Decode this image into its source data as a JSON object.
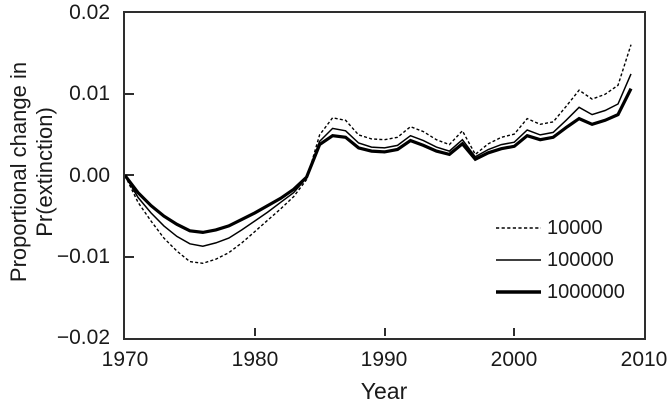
{
  "figure": {
    "background": "#ffffff",
    "line_color": "#000000",
    "frame_color": "#2e2e2e"
  },
  "chart_data": {
    "type": "line",
    "title": "",
    "xlabel": "Year",
    "ylabel": "Proportional change in Pr(extinction)",
    "ylabel_lines": [
      "Proportional change in",
      "Pr(extinction)"
    ],
    "xlim": [
      1970,
      2010
    ],
    "ylim": [
      -0.02,
      0.02
    ],
    "grid": false,
    "legend_position": "inside lower right",
    "x_tick_values": [
      1970,
      1980,
      1990,
      2000,
      2010
    ],
    "x_tick_labels": [
      "1970",
      "1980",
      "1990",
      "2000",
      "2010"
    ],
    "y_tick_values": [
      0.02,
      0.01,
      0.0,
      -0.01,
      -0.02
    ],
    "y_tick_labels": [
      "0.02",
      "0.01",
      "0.00",
      "−0.01",
      "−0.02"
    ],
    "x": [
      1970,
      1971,
      1972,
      1973,
      1974,
      1975,
      1976,
      1977,
      1978,
      1979,
      1980,
      1981,
      1982,
      1983,
      1984,
      1985,
      1986,
      1987,
      1988,
      1989,
      1990,
      1991,
      1992,
      1993,
      1994,
      1995,
      1996,
      1997,
      1998,
      1999,
      2000,
      2001,
      2002,
      2003,
      2004,
      2005,
      2006,
      2007,
      2008,
      2009
    ],
    "series": [
      {
        "name": "10000",
        "style": "dashed",
        "values": [
          0.0,
          -0.0033,
          -0.0056,
          -0.0077,
          -0.0093,
          -0.0106,
          -0.0108,
          -0.0103,
          -0.0095,
          -0.0083,
          -0.0069,
          -0.0055,
          -0.0041,
          -0.0026,
          -0.0005,
          0.005,
          0.0071,
          0.0068,
          0.005,
          0.0045,
          0.0044,
          0.0047,
          0.006,
          0.0054,
          0.0044,
          0.0038,
          0.0055,
          0.0026,
          0.0039,
          0.0047,
          0.0051,
          0.007,
          0.0063,
          0.0066,
          0.0085,
          0.0105,
          0.0094,
          0.01,
          0.0111,
          0.0161
        ]
      },
      {
        "name": "100000",
        "style": "thin-solid",
        "values": [
          0.0,
          -0.0027,
          -0.0046,
          -0.0062,
          -0.0075,
          -0.0084,
          -0.0087,
          -0.0083,
          -0.0077,
          -0.0067,
          -0.0056,
          -0.0045,
          -0.0033,
          -0.0021,
          -0.0003,
          0.0042,
          0.0058,
          0.0055,
          0.004,
          0.0035,
          0.0034,
          0.0037,
          0.0049,
          0.0043,
          0.0035,
          0.003,
          0.0044,
          0.0023,
          0.0032,
          0.0038,
          0.0041,
          0.0056,
          0.005,
          0.0053,
          0.0068,
          0.0084,
          0.0075,
          0.008,
          0.0088,
          0.0125
        ]
      },
      {
        "name": "1000000",
        "style": "thick-solid",
        "values": [
          0.0,
          -0.0021,
          -0.0037,
          -0.005,
          -0.006,
          -0.0068,
          -0.007,
          -0.0067,
          -0.0062,
          -0.0054,
          -0.0046,
          -0.0037,
          -0.0028,
          -0.0017,
          -0.0002,
          0.0038,
          0.0049,
          0.0047,
          0.0034,
          0.003,
          0.0029,
          0.0032,
          0.0043,
          0.0037,
          0.003,
          0.0026,
          0.0039,
          0.002,
          0.0028,
          0.0033,
          0.0036,
          0.0049,
          0.0044,
          0.0047,
          0.0059,
          0.007,
          0.0063,
          0.0068,
          0.0075,
          0.0107
        ]
      }
    ]
  }
}
